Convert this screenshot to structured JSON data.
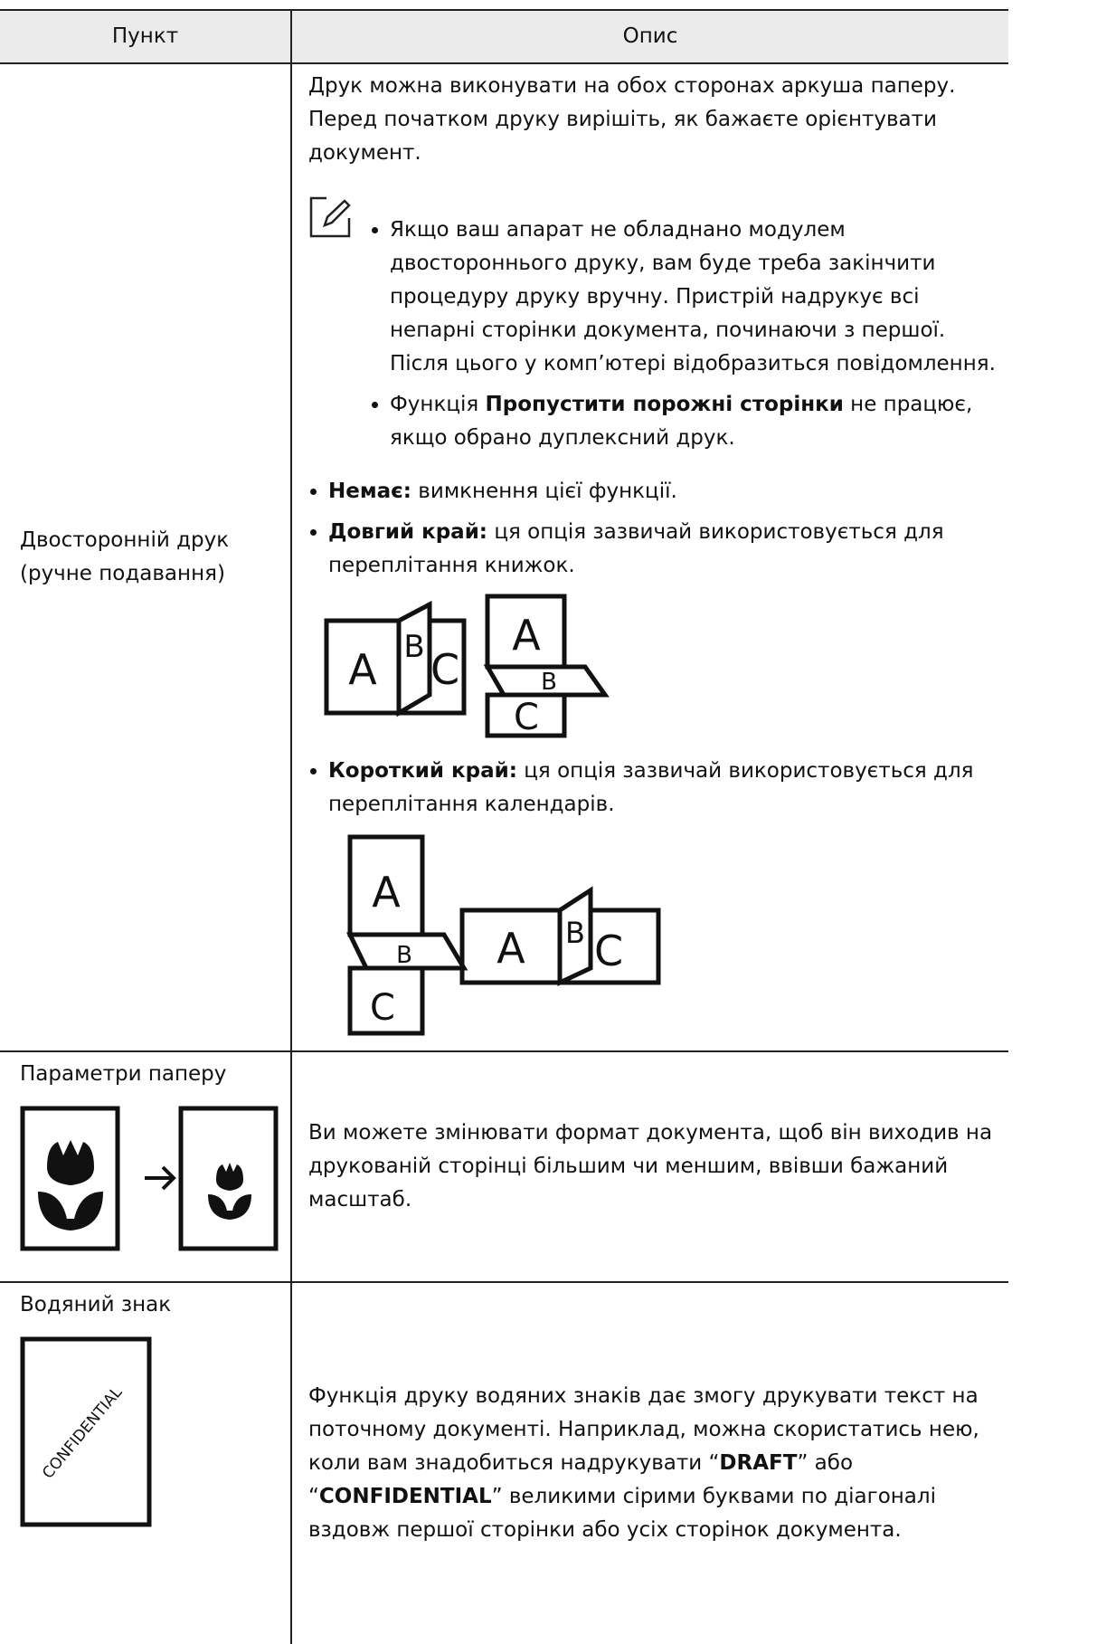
{
  "table": {
    "header": [
      "Пункт",
      "Опис"
    ],
    "rows": [
      {
        "item": "Двосторонній друк (ручне подавання)",
        "description": {
          "intro": "Друк можна виконувати на обох сторонах аркуша паперу. Перед початком друку вирішіть, як бажаєте орієнтувати документ.",
          "notes": [
            {
              "parts": [
                {
                  "text": "Якщо ваш апарат не обладнано модулем двостороннього друку, вам буде треба закінчити процедуру друку вручну. Пристрій надрукує всі непарні сторінки документа, починаючи з першої. Після цього у комп’ютері відобразиться повідомлення.",
                  "bold": false
                }
              ]
            },
            {
              "parts": [
                {
                  "text": "Функція ",
                  "bold": false
                },
                {
                  "text": "Пропустити порожні сторінки",
                  "bold": true
                },
                {
                  "text": " не працює, якщо обрано дуплексний друк.",
                  "bold": false
                }
              ]
            }
          ],
          "options": [
            {
              "label": "Немає:",
              "text": " вимкнення цієї функції."
            },
            {
              "label": "Довгий край:",
              "text": " ця опція зазвичай використовується для переплітання книжок.",
              "illustration": [
                "A",
                "B",
                "C",
                "A",
                "B",
                "C"
              ]
            },
            {
              "label": "Короткий край:",
              "text": " ця опція зазвичай використовується для переплітання календарів.",
              "illustration": [
                "A",
                "B",
                "C",
                "A",
                "B",
                "C"
              ]
            }
          ]
        }
      },
      {
        "item": "Параметри паперу",
        "description": {
          "parts": [
            {
              "text": "Ви можете змінювати формат документа, щоб він виходив на друкованій сторінці більшим чи меншим, ввівши бажаний масштаб.",
              "bold": false
            }
          ]
        }
      },
      {
        "item": "Водяний знак",
        "illustration": "CONFIDENTIAL",
        "description": {
          "parts": [
            {
              "text": "Функція друку водяних знаків дає змогу друкувати текст на поточному документі. Наприклад, можна скористатись нею, коли вам знадобиться надрукувати “",
              "bold": false
            },
            {
              "text": "DRAFT",
              "bold": true
            },
            {
              "text": "” або “",
              "bold": false
            },
            {
              "text": "CONFIDENTIAL",
              "bold": true
            },
            {
              "text": "” великими сірими буквами по діагоналі вздовж першої сторінки або усіх сторінок документа.",
              "bold": false
            }
          ]
        }
      }
    ]
  }
}
